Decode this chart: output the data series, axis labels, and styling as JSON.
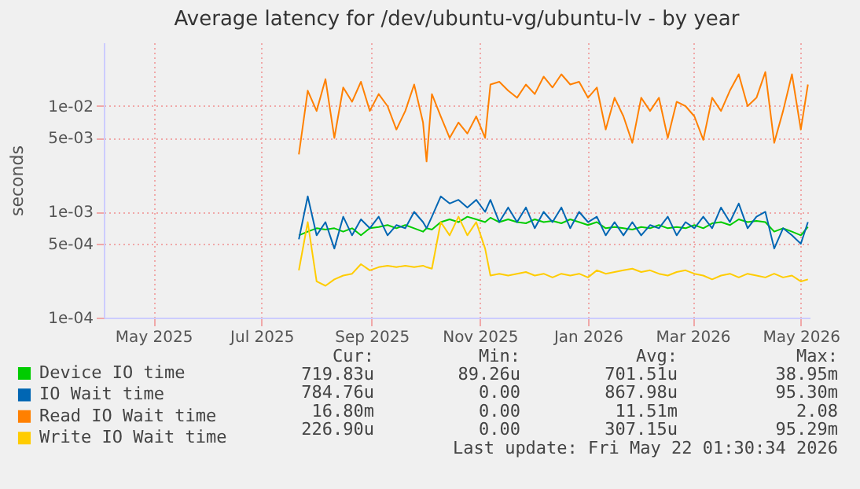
{
  "chart_data": {
    "type": "line",
    "title": "Average latency for /dev/ubuntu-vg/ubuntu-lv - by year",
    "ylabel": "seconds",
    "x": [
      "2025-08-06",
      "2025-08-11",
      "2025-08-16",
      "2025-08-21",
      "2025-08-26",
      "2025-08-31",
      "2025-09-05",
      "2025-09-10",
      "2025-09-15",
      "2025-09-20",
      "2025-09-25",
      "2025-09-30",
      "2025-10-05",
      "2025-10-10",
      "2025-10-15",
      "2025-10-17",
      "2025-10-20",
      "2025-10-25",
      "2025-10-30",
      "2025-11-04",
      "2025-11-09",
      "2025-11-14",
      "2025-11-19",
      "2025-11-22",
      "2025-11-27",
      "2025-12-02",
      "2025-12-07",
      "2025-12-12",
      "2025-12-17",
      "2025-12-22",
      "2025-12-27",
      "2026-01-01",
      "2026-01-06",
      "2026-01-11",
      "2026-01-16",
      "2026-01-21",
      "2026-01-26",
      "2026-01-31",
      "2026-02-05",
      "2026-02-10",
      "2026-02-15",
      "2026-02-20",
      "2026-02-25",
      "2026-03-02",
      "2026-03-07",
      "2026-03-12",
      "2026-03-17",
      "2026-03-22",
      "2026-03-27",
      "2026-04-01",
      "2026-04-06",
      "2026-04-11",
      "2026-04-16",
      "2026-04-21",
      "2026-04-26",
      "2026-05-01",
      "2026-05-06",
      "2026-05-11",
      "2026-05-16",
      "2026-05-20"
    ],
    "series": [
      {
        "name": "Device IO time",
        "color": "#00cc00",
        "values": [
          0.0006,
          0.00065,
          0.0007,
          0.00068,
          0.0007,
          0.00065,
          0.0007,
          0.0006,
          0.0007,
          0.00072,
          0.00075,
          0.0007,
          0.00075,
          0.0007,
          0.00065,
          0.0007,
          0.00068,
          0.0008,
          0.00085,
          0.0008,
          0.0009,
          0.00085,
          0.0008,
          0.00088,
          0.0008,
          0.00085,
          0.0008,
          0.00078,
          0.00085,
          0.0008,
          0.00082,
          0.00078,
          0.00085,
          0.0008,
          0.00075,
          0.0008,
          0.0007,
          0.00072,
          0.0007,
          0.00068,
          0.00072,
          0.0007,
          0.00075,
          0.0007,
          0.00072,
          0.0007,
          0.00075,
          0.0007,
          0.00078,
          0.0008,
          0.00075,
          0.00085,
          0.0008,
          0.00082,
          0.0008,
          0.00065,
          0.0007,
          0.00065,
          0.0006,
          0.00072
        ]
      },
      {
        "name": "IO Wait time",
        "color": "#0066b3",
        "values": [
          0.00055,
          0.0014,
          0.0006,
          0.0008,
          0.00045,
          0.0009,
          0.0006,
          0.00085,
          0.0007,
          0.0009,
          0.0006,
          0.00075,
          0.0007,
          0.001,
          0.0008,
          0.0007,
          0.0009,
          0.0014,
          0.0012,
          0.0013,
          0.0011,
          0.0013,
          0.001,
          0.0013,
          0.0008,
          0.0011,
          0.0008,
          0.0011,
          0.0007,
          0.001,
          0.0008,
          0.0011,
          0.0007,
          0.001,
          0.0008,
          0.0009,
          0.0006,
          0.0008,
          0.0006,
          0.0008,
          0.0006,
          0.00075,
          0.0007,
          0.0009,
          0.0006,
          0.0008,
          0.0007,
          0.0009,
          0.0007,
          0.0011,
          0.0008,
          0.0012,
          0.0007,
          0.0009,
          0.001,
          0.00045,
          0.0007,
          0.0006,
          0.0005,
          0.0008
        ]
      },
      {
        "name": "Read IO Wait time",
        "color": "#ff8000",
        "values": [
          0.0035,
          0.014,
          0.009,
          0.018,
          0.005,
          0.015,
          0.011,
          0.017,
          0.009,
          0.013,
          0.01,
          0.006,
          0.009,
          0.016,
          0.007,
          0.003,
          0.013,
          0.008,
          0.005,
          0.007,
          0.0055,
          0.008,
          0.005,
          0.016,
          0.017,
          0.014,
          0.012,
          0.016,
          0.013,
          0.019,
          0.015,
          0.02,
          0.016,
          0.017,
          0.012,
          0.015,
          0.006,
          0.012,
          0.008,
          0.0045,
          0.012,
          0.009,
          0.012,
          0.005,
          0.011,
          0.01,
          0.008,
          0.0048,
          0.012,
          0.009,
          0.014,
          0.02,
          0.01,
          0.012,
          0.021,
          0.0045,
          0.009,
          0.02,
          0.006,
          0.016
        ]
      },
      {
        "name": "Write IO Wait time",
        "color": "#ffcc00",
        "values": [
          0.00028,
          0.0008,
          0.00022,
          0.0002,
          0.00023,
          0.00025,
          0.00026,
          0.00032,
          0.00028,
          0.0003,
          0.00031,
          0.0003,
          0.00031,
          0.0003,
          0.00031,
          0.0003,
          0.00029,
          0.0008,
          0.0006,
          0.0009,
          0.0006,
          0.0008,
          0.00045,
          0.00025,
          0.00026,
          0.00025,
          0.00026,
          0.00027,
          0.00025,
          0.00026,
          0.00024,
          0.00026,
          0.00025,
          0.00026,
          0.00024,
          0.00028,
          0.00026,
          0.00027,
          0.00028,
          0.00029,
          0.00027,
          0.00028,
          0.00026,
          0.00025,
          0.00027,
          0.00028,
          0.00026,
          0.00025,
          0.00023,
          0.00025,
          0.00026,
          0.00024,
          0.00026,
          0.00025,
          0.00024,
          0.00026,
          0.00024,
          0.00025,
          0.00022,
          0.00023
        ]
      }
    ],
    "xlim": [
      "2025-04-18",
      "2026-05-21"
    ],
    "xticks": [
      {
        "value": "2025-05-16",
        "label": "May 2025"
      },
      {
        "value": "2025-07-16",
        "label": "Jul 2025"
      },
      {
        "value": "2025-09-16",
        "label": "Sep 2025"
      },
      {
        "value": "2025-11-16",
        "label": "Nov 2025"
      },
      {
        "value": "2026-01-16",
        "label": "Jan 2026"
      },
      {
        "value": "2026-03-16",
        "label": "Mar 2026"
      },
      {
        "value": "2026-05-16",
        "label": "May 2026"
      }
    ],
    "ylim": [
      0.0001,
      0.04
    ],
    "yticks": [
      {
        "value": 0.0001,
        "label": "1e-04"
      },
      {
        "value": 0.0005,
        "label": "5e-04"
      },
      {
        "value": 0.001,
        "label": "1e-03"
      },
      {
        "value": 0.005,
        "label": "5e-03"
      },
      {
        "value": 0.01,
        "label": "1e-02"
      }
    ],
    "log": "y",
    "grid": true,
    "legend": "bottom left",
    "annotations": [
      "Cur:",
      "Min:",
      "Avg:",
      "Max:",
      "719.83u",
      "89.26u",
      "701.51u",
      "38.95m",
      "784.76u",
      "0.00",
      "867.98u",
      "95.30m",
      "16.80m",
      "0.00",
      "11.51m",
      "2.08",
      "226.90u",
      "0.00",
      "307.15u",
      "95.29m",
      "Last update: Fri May 22 01:30:34 2026"
    ]
  }
}
